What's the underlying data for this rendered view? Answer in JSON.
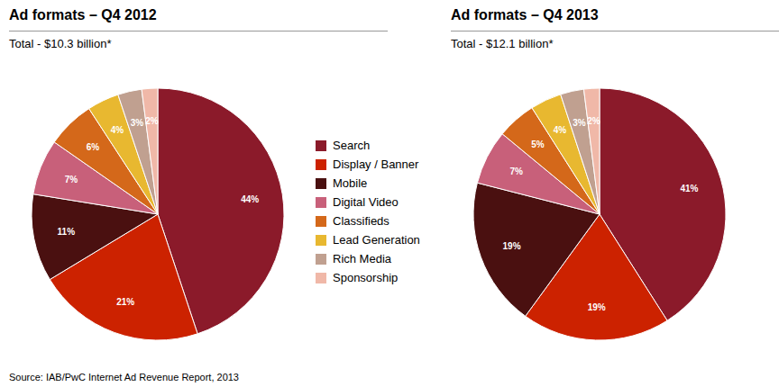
{
  "chart_data": [
    {
      "type": "pie",
      "title": "Ad formats – Q4 2012",
      "subtitle": "Total - $10.3 billion*",
      "categories": [
        "Search",
        "Display / Banner",
        "Mobile",
        "Digital Video",
        "Classifieds",
        "Lead Generation",
        "Rich Media",
        "Sponsorship"
      ],
      "values": [
        44,
        21,
        11,
        7,
        6,
        4,
        3,
        2
      ],
      "value_labels": [
        "44%",
        "21%",
        "11%",
        "7%",
        "6%",
        "4%",
        "3%",
        "2%"
      ],
      "colors": [
        "#8B1A2A",
        "#CC2200",
        "#4A1010",
        "#C8607A",
        "#D4681A",
        "#E8B830",
        "#C0A090",
        "#F0B8A8"
      ],
      "data_labels": true,
      "legend": "center"
    },
    {
      "type": "pie",
      "title": "Ad formats – Q4 2013",
      "subtitle": "Total - $12.1 billion*",
      "categories": [
        "Search",
        "Display / Banner",
        "Mobile",
        "Digital Video",
        "Classifieds",
        "Lead Generation",
        "Rich Media",
        "Sponsorship"
      ],
      "values": [
        41,
        19,
        19,
        7,
        5,
        4,
        3,
        2
      ],
      "value_labels": [
        "41%",
        "19%",
        "19%",
        "7%",
        "5%",
        "4%",
        "3%",
        "2%"
      ],
      "colors": [
        "#8B1A2A",
        "#CC2200",
        "#4A1010",
        "#C8607A",
        "#D4681A",
        "#E8B830",
        "#C0A090",
        "#F0B8A8"
      ],
      "data_labels": true,
      "legend": "center"
    }
  ],
  "source": "Source: IAB/PwC Internet Ad Revenue Report, 2013"
}
